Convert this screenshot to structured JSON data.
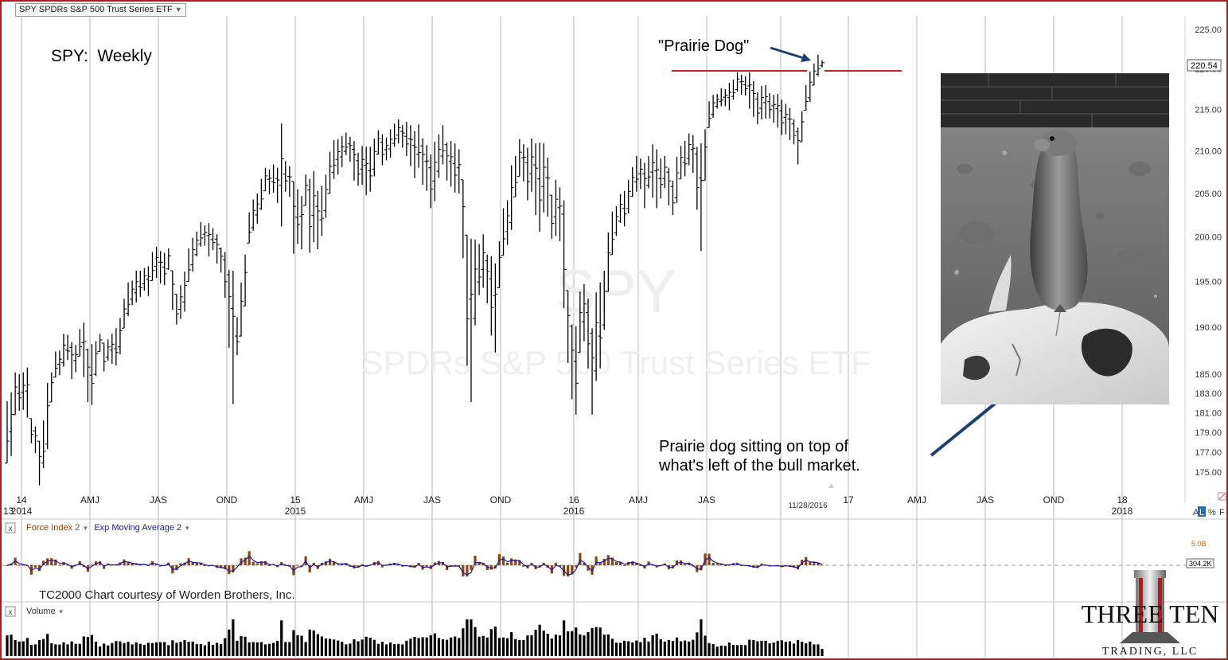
{
  "header": {
    "symbol_select": "SPY SPDRs S&P 500 Trust Series ETF"
  },
  "chart_data": [
    {
      "type": "ohlc",
      "title": "SPY:  Weekly",
      "watermark_symbol": "SPY",
      "watermark_name": "SPDRs S&P 500 Trust Series ETF",
      "last_price_tag": "220.54",
      "date_marker": "11/28/2016",
      "y_ticks": [
        "225.00",
        "220.00",
        "215.00",
        "210.00",
        "205.00",
        "200.00",
        "195.00",
        "190.00",
        "185.00",
        "183.00",
        "181.00",
        "179.00",
        "177.00",
        "175.00"
      ],
      "y_tick_values": [
        225,
        220,
        215,
        210,
        205,
        200,
        195,
        190,
        185,
        183,
        181,
        179,
        177,
        175
      ],
      "x_ticks_top": [
        "14",
        "AMJ",
        "JAS",
        "OND",
        "15",
        "AMJ",
        "JAS",
        "OND",
        "16",
        "AMJ",
        "JAS",
        "17",
        "AMJ",
        "JAS",
        "OND",
        "18"
      ],
      "x_ticks_bottom": [
        "2014",
        "2015",
        "2016",
        "2018"
      ],
      "x_first_partial": "13",
      "scale_buttons": [
        "A",
        "L",
        "%",
        "F"
      ],
      "bars": [
        {
          "h": 182.2,
          "l": 175.9
        },
        {
          "h": 183.1,
          "l": 176.6
        },
        {
          "h": 185.2,
          "l": 180.8
        },
        {
          "h": 185.0,
          "l": 181.2
        },
        {
          "h": 185.2,
          "l": 181.3
        },
        {
          "h": 185.7,
          "l": 180.5
        },
        {
          "h": 180.4,
          "l": 177.9
        },
        {
          "h": 179.6,
          "l": 176.9
        },
        {
          "h": 178.1,
          "l": 173.7
        },
        {
          "h": 180.2,
          "l": 175.4
        },
        {
          "h": 184.1,
          "l": 177.3
        },
        {
          "h": 185.2,
          "l": 182.1
        },
        {
          "h": 187.4,
          "l": 184.7
        },
        {
          "h": 187.5,
          "l": 184.9
        },
        {
          "h": 189.3,
          "l": 185.8
        },
        {
          "h": 189.2,
          "l": 186.5
        },
        {
          "h": 188.4,
          "l": 184.5
        },
        {
          "h": 188.1,
          "l": 185.2
        },
        {
          "h": 189.8,
          "l": 186.9
        },
        {
          "h": 190.5,
          "l": 184.7
        },
        {
          "h": 187.7,
          "l": 182.1
        },
        {
          "h": 188.2,
          "l": 181.8
        },
        {
          "h": 188.5,
          "l": 184.8
        },
        {
          "h": 189.3,
          "l": 187.4
        },
        {
          "h": 188.3,
          "l": 185.3
        },
        {
          "h": 188.7,
          "l": 186.4
        },
        {
          "h": 189.3,
          "l": 186.1
        },
        {
          "h": 189.9,
          "l": 185.9
        },
        {
          "h": 191.0,
          "l": 187.1
        },
        {
          "h": 193.1,
          "l": 189.9
        },
        {
          "h": 194.9,
          "l": 191.2
        },
        {
          "h": 195.1,
          "l": 192.4
        },
        {
          "h": 196.2,
          "l": 192.7
        },
        {
          "h": 196.2,
          "l": 193.3
        },
        {
          "h": 196.5,
          "l": 194.0
        },
        {
          "h": 196.7,
          "l": 193.4
        },
        {
          "h": 198.3,
          "l": 195.1
        },
        {
          "h": 198.9,
          "l": 195.4
        },
        {
          "h": 198.4,
          "l": 194.8
        },
        {
          "h": 198.2,
          "l": 194.6
        },
        {
          "h": 198.7,
          "l": 196.3
        },
        {
          "h": 196.2,
          "l": 191.9
        },
        {
          "h": 193.6,
          "l": 190.3
        },
        {
          "h": 194.6,
          "l": 190.9
        },
        {
          "h": 196.1,
          "l": 191.7
        },
        {
          "h": 198.7,
          "l": 195.0
        },
        {
          "h": 199.9,
          "l": 196.1
        },
        {
          "h": 200.6,
          "l": 197.8
        },
        {
          "h": 201.7,
          "l": 198.9
        },
        {
          "h": 201.3,
          "l": 199.0
        },
        {
          "h": 201.6,
          "l": 197.8
        },
        {
          "h": 201.0,
          "l": 198.5
        },
        {
          "h": 200.3,
          "l": 197.0
        },
        {
          "h": 198.8,
          "l": 196.0
        },
        {
          "h": 198.3,
          "l": 193.2
        },
        {
          "h": 196.3,
          "l": 187.8
        },
        {
          "h": 196.2,
          "l": 181.9
        },
        {
          "h": 191.1,
          "l": 187.0
        },
        {
          "h": 194.9,
          "l": 189.0
        },
        {
          "h": 198.0,
          "l": 192.3
        },
        {
          "h": 202.8,
          "l": 199.3
        },
        {
          "h": 204.3,
          "l": 200.7
        },
        {
          "h": 205.0,
          "l": 201.5
        },
        {
          "h": 206.7,
          "l": 203.1
        },
        {
          "h": 208.0,
          "l": 205.3
        },
        {
          "h": 207.8,
          "l": 204.9
        },
        {
          "h": 208.4,
          "l": 205.1
        },
        {
          "h": 208.0,
          "l": 203.9
        },
        {
          "h": 213.3,
          "l": 201.2
        },
        {
          "h": 208.8,
          "l": 205.2
        },
        {
          "h": 208.2,
          "l": 204.6
        },
        {
          "h": 206.4,
          "l": 198.1
        },
        {
          "h": 205.5,
          "l": 199.2
        },
        {
          "h": 204.7,
          "l": 198.6
        },
        {
          "h": 207.2,
          "l": 203.6
        },
        {
          "h": 206.7,
          "l": 198.2
        },
        {
          "h": 207.6,
          "l": 199.4
        },
        {
          "h": 205.3,
          "l": 198.6
        },
        {
          "h": 205.9,
          "l": 200.1
        },
        {
          "h": 207.2,
          "l": 202.2
        },
        {
          "h": 209.9,
          "l": 205.0
        },
        {
          "h": 211.3,
          "l": 206.7
        },
        {
          "h": 211.4,
          "l": 207.2
        },
        {
          "h": 211.8,
          "l": 208.1
        },
        {
          "h": 212.2,
          "l": 209.5
        },
        {
          "h": 211.7,
          "l": 208.7
        },
        {
          "h": 211.2,
          "l": 206.5
        },
        {
          "h": 209.8,
          "l": 205.9
        },
        {
          "h": 210.6,
          "l": 206.0
        },
        {
          "h": 210.5,
          "l": 204.8
        },
        {
          "h": 210.5,
          "l": 205.2
        },
        {
          "h": 211.5,
          "l": 207.0
        },
        {
          "h": 212.5,
          "l": 209.6
        },
        {
          "h": 212.0,
          "l": 208.3
        },
        {
          "h": 211.6,
          "l": 208.9
        },
        {
          "h": 212.6,
          "l": 209.2
        },
        {
          "h": 213.3,
          "l": 210.5
        },
        {
          "h": 213.8,
          "l": 210.9
        },
        {
          "h": 213.1,
          "l": 210.4
        },
        {
          "h": 213.5,
          "l": 209.4
        },
        {
          "h": 213.1,
          "l": 208.2
        },
        {
          "h": 212.4,
          "l": 206.8
        },
        {
          "h": 213.2,
          "l": 208.0
        },
        {
          "h": 211.5,
          "l": 206.0
        },
        {
          "h": 210.7,
          "l": 205.3
        },
        {
          "h": 209.6,
          "l": 203.3
        },
        {
          "h": 211.1,
          "l": 204.1
        },
        {
          "h": 212.0,
          "l": 206.8
        },
        {
          "h": 213.1,
          "l": 208.4
        },
        {
          "h": 211.0,
          "l": 206.5
        },
        {
          "h": 211.2,
          "l": 205.8
        },
        {
          "h": 210.9,
          "l": 205.1
        },
        {
          "h": 210.2,
          "l": 205.0
        },
        {
          "h": 206.6,
          "l": 197.6
        },
        {
          "h": 200.2,
          "l": 185.9
        },
        {
          "h": 199.8,
          "l": 182.1
        },
        {
          "h": 199.7,
          "l": 190.2
        },
        {
          "h": 199.2,
          "l": 193.5
        },
        {
          "h": 200.3,
          "l": 194.3
        },
        {
          "h": 198.0,
          "l": 192.6
        },
        {
          "h": 197.8,
          "l": 189.1
        },
        {
          "h": 197.0,
          "l": 187.3
        },
        {
          "h": 199.5,
          "l": 194.3
        },
        {
          "h": 203.3,
          "l": 197.9
        },
        {
          "h": 204.2,
          "l": 199.1
        },
        {
          "h": 208.3,
          "l": 200.8
        },
        {
          "h": 209.4,
          "l": 204.6
        },
        {
          "h": 211.4,
          "l": 207.0
        },
        {
          "h": 210.8,
          "l": 206.4
        },
        {
          "h": 210.4,
          "l": 204.2
        },
        {
          "h": 211.5,
          "l": 205.2
        },
        {
          "h": 210.9,
          "l": 202.5
        },
        {
          "h": 211.0,
          "l": 200.6
        },
        {
          "h": 210.9,
          "l": 202.8
        },
        {
          "h": 209.2,
          "l": 202.3
        },
        {
          "h": 204.8,
          "l": 199.8
        },
        {
          "h": 206.6,
          "l": 200.1
        },
        {
          "h": 205.7,
          "l": 199.5
        },
        {
          "h": 204.2,
          "l": 192.1
        },
        {
          "h": 194.0,
          "l": 186.2
        },
        {
          "h": 190.3,
          "l": 182.4
        },
        {
          "h": 190.1,
          "l": 180.8
        },
        {
          "h": 193.9,
          "l": 187.3
        },
        {
          "h": 194.7,
          "l": 188.5
        },
        {
          "h": 193.1,
          "l": 185.6
        },
        {
          "h": 189.9,
          "l": 180.8
        },
        {
          "h": 193.8,
          "l": 184.3
        },
        {
          "h": 194.9,
          "l": 185.6
        },
        {
          "h": 196.2,
          "l": 189.7
        },
        {
          "h": 200.5,
          "l": 193.9
        },
        {
          "h": 202.9,
          "l": 198.0
        },
        {
          "h": 203.5,
          "l": 200.1
        },
        {
          "h": 204.9,
          "l": 201.6
        },
        {
          "h": 205.3,
          "l": 201.2
        },
        {
          "h": 206.6,
          "l": 202.7
        },
        {
          "h": 208.1,
          "l": 204.6
        },
        {
          "h": 209.4,
          "l": 205.2
        },
        {
          "h": 209.1,
          "l": 205.5
        },
        {
          "h": 208.6,
          "l": 203.3
        },
        {
          "h": 209.4,
          "l": 205.6
        },
        {
          "h": 210.8,
          "l": 204.5
        },
        {
          "h": 210.2,
          "l": 203.3
        },
        {
          "h": 209.1,
          "l": 204.4
        },
        {
          "h": 209.4,
          "l": 205.6
        },
        {
          "h": 208.0,
          "l": 203.6
        },
        {
          "h": 206.5,
          "l": 202.5
        },
        {
          "h": 209.3,
          "l": 203.9
        },
        {
          "h": 210.6,
          "l": 206.7
        },
        {
          "h": 211.2,
          "l": 207.0
        },
        {
          "h": 212.1,
          "l": 208.3
        },
        {
          "h": 211.9,
          "l": 207.4
        },
        {
          "h": 210.5,
          "l": 203.1
        },
        {
          "h": 210.9,
          "l": 198.4
        },
        {
          "h": 212.6,
          "l": 206.5
        },
        {
          "h": 216.0,
          "l": 212.8
        },
        {
          "h": 216.8,
          "l": 214.0
        },
        {
          "h": 216.9,
          "l": 215.1
        },
        {
          "h": 217.6,
          "l": 215.4
        },
        {
          "h": 217.5,
          "l": 215.4
        },
        {
          "h": 218.3,
          "l": 214.9
        },
        {
          "h": 218.7,
          "l": 216.2
        },
        {
          "h": 219.6,
          "l": 217.2
        },
        {
          "h": 219.3,
          "l": 216.8
        },
        {
          "h": 219.1,
          "l": 216.7
        },
        {
          "h": 219.6,
          "l": 215.1
        },
        {
          "h": 218.5,
          "l": 214.1
        },
        {
          "h": 217.1,
          "l": 213.2
        },
        {
          "h": 217.9,
          "l": 213.8
        },
        {
          "h": 218.0,
          "l": 213.9
        },
        {
          "h": 217.0,
          "l": 213.9
        },
        {
          "h": 216.8,
          "l": 213.4
        },
        {
          "h": 216.9,
          "l": 212.8
        },
        {
          "h": 216.2,
          "l": 211.9
        },
        {
          "h": 215.7,
          "l": 212.0
        },
        {
          "h": 215.2,
          "l": 211.3
        },
        {
          "h": 213.8,
          "l": 210.8
        },
        {
          "h": 212.8,
          "l": 208.4
        },
        {
          "h": 214.8,
          "l": 211.1
        },
        {
          "h": 218.0,
          "l": 214.9
        },
        {
          "h": 219.7,
          "l": 215.9
        },
        {
          "h": 220.7,
          "l": 218.0
        },
        {
          "h": 221.8,
          "l": 219.1
        },
        {
          "h": 221.1,
          "l": 220.2
        }
      ]
    },
    {
      "type": "bar",
      "series": [
        {
          "name": "Force Index 2",
          "color": "#8b4513"
        },
        {
          "name": "Exp Moving Average 2",
          "color": "#1a1aa0"
        }
      ],
      "value_tags": [
        "5.0B",
        "304.2K"
      ]
    },
    {
      "type": "bar",
      "series": [
        {
          "name": "Volume",
          "color": "#000000"
        }
      ]
    }
  ],
  "annotations": {
    "prairie_dog_label": "\"Prairie Dog\"",
    "caption_line1": "Prairie dog sitting on top of",
    "caption_line2": "what's left of the bull market.",
    "courtesy": "TC2000 Chart courtesy of Worden Brothers, Inc.",
    "resistance_color": "#c0262b",
    "arrow_color": "#1f3f73"
  },
  "logo": {
    "line1": "THREE TEN",
    "line2": "TRADING, LLC"
  },
  "colors": {
    "frame": "#b31b1b",
    "gridline": "#b0b0b0",
    "bar": "#000000",
    "force_bar": "#8b4513",
    "ema_line": "#1a1aa0"
  }
}
